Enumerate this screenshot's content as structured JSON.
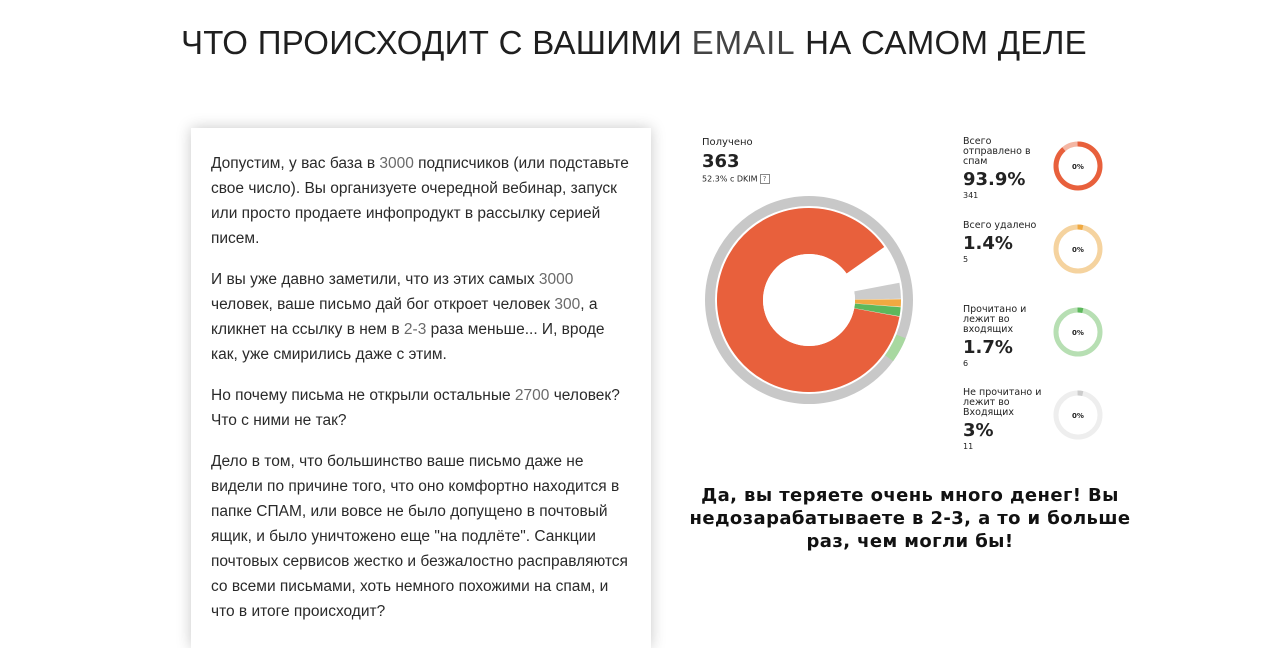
{
  "headline": {
    "part1": "ЧТО ПРОИСХОДИТ С ВАШИМИ ",
    "part2": "EMAIL",
    "part3": " НА САМОМ ДЕЛЕ"
  },
  "story": {
    "p1": {
      "t1": "Допустим, у вас база в ",
      "n1": "3000",
      "t2": " подписчиков (или подставьте свое число). Вы организуете очередной вебинар, запуск или просто продаете инфопродукт в рассылку серией писем."
    },
    "p2": {
      "t1": "И вы уже давно заметили, что из этих самых ",
      "n1": "3000",
      "t2": " человек, ваше письмо дай бог откроет человек ",
      "n2": "300",
      "t3": ", а кликнет на ссылку в нем в ",
      "n3": "2-3",
      "t4": " раза меньше... И, вроде как, уже смирились даже с этим."
    },
    "p3": {
      "t1": "Но почему письма не открыли остальные ",
      "n1": "2700",
      "t2": " человек? Что с ними не так?"
    },
    "p4": {
      "t1": "Дело в том, что большинство ваше письмо даже не видели по причине того, что оно комфортно находится в папке СПАМ, или вовсе не было допущено в почтовый ящик, и было уничтожено еще \"на подлёте\". Санкции почтовых сервисов жестко и безжалостно расправляются со всеми письмами, хоть немного похожими на спам, и что в итоге происходит?"
    }
  },
  "report": {
    "received_label": "Получено",
    "received_value": "363",
    "received_sub": "52.3% с DKIM",
    "help_icon": "?",
    "stats": [
      {
        "label": "Всего отправлено в спам",
        "pct": "93.9%",
        "count": "341",
        "mini_label": "0%",
        "color": "#e8603c",
        "fraction": 0.939
      },
      {
        "label": "Всего удалено",
        "pct": "1.4%",
        "count": "5",
        "mini_label": "0%",
        "color": "#f0a941",
        "fraction": 0.014
      },
      {
        "label": "Прочитано и лежит во входящих",
        "pct": "1.7%",
        "count": "6",
        "mini_label": "0%",
        "color": "#5cb85c",
        "fraction": 0.017
      },
      {
        "label": "Не прочитано и лежит во Входящих",
        "pct": "3%",
        "count": "11",
        "mini_label": "0%",
        "color": "#cccccc",
        "fraction": 0.03
      }
    ]
  },
  "conclusion": "Да, вы теряете очень много денег! Вы недозарабатываете в 2-3, а то и больше раз, чем могли бы!"
}
